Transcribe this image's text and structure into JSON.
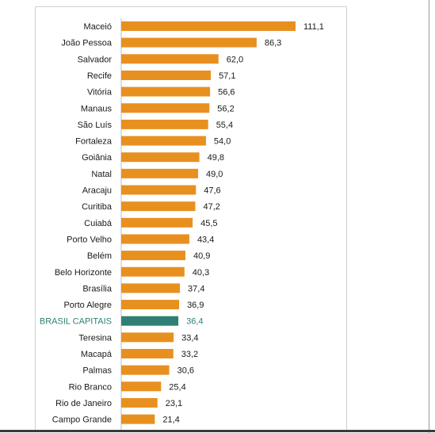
{
  "chart_data": {
    "type": "bar",
    "orientation": "horizontal",
    "categories": [
      "Maceió",
      "João Pessoa",
      "Salvador",
      "Recife",
      "Vitória",
      "Manaus",
      "São Luís",
      "Fortaleza",
      "Goiânia",
      "Natal",
      "Aracaju",
      "Curitiba",
      "Cuiabá",
      "Porto Velho",
      "Belém",
      "Belo Horizonte",
      "Brasília",
      "Porto Alegre",
      "BRASIL CAPITAIS",
      "Teresina",
      "Macapá",
      "Palmas",
      "Rio Branco",
      "Rio de Janeiro",
      "Campo Grande"
    ],
    "values": [
      111.1,
      86.3,
      62.0,
      57.1,
      56.6,
      56.2,
      55.4,
      54.0,
      49.8,
      49.0,
      47.6,
      47.2,
      45.5,
      43.4,
      40.9,
      40.3,
      37.4,
      36.9,
      36.4,
      33.4,
      33.2,
      30.6,
      25.4,
      23.1,
      21.4
    ],
    "value_labels": [
      "111,1",
      "86,3",
      "62,0",
      "57,1",
      "56,6",
      "56,2",
      "55,4",
      "54,0",
      "49,8",
      "49,0",
      "47,6",
      "47,2",
      "45,5",
      "43,4",
      "40,9",
      "40,3",
      "37,4",
      "36,9",
      "36,4",
      "33,4",
      "33,2",
      "30,6",
      "25,4",
      "23,1",
      "21,4"
    ],
    "highlight_category": "BRASIL CAPITAIS",
    "colors": {
      "bar": "#e8901f",
      "highlight": "#2e8074"
    },
    "xlim": [
      0,
      111.1
    ],
    "grid": false,
    "title": "",
    "xlabel": "",
    "ylabel": ""
  }
}
